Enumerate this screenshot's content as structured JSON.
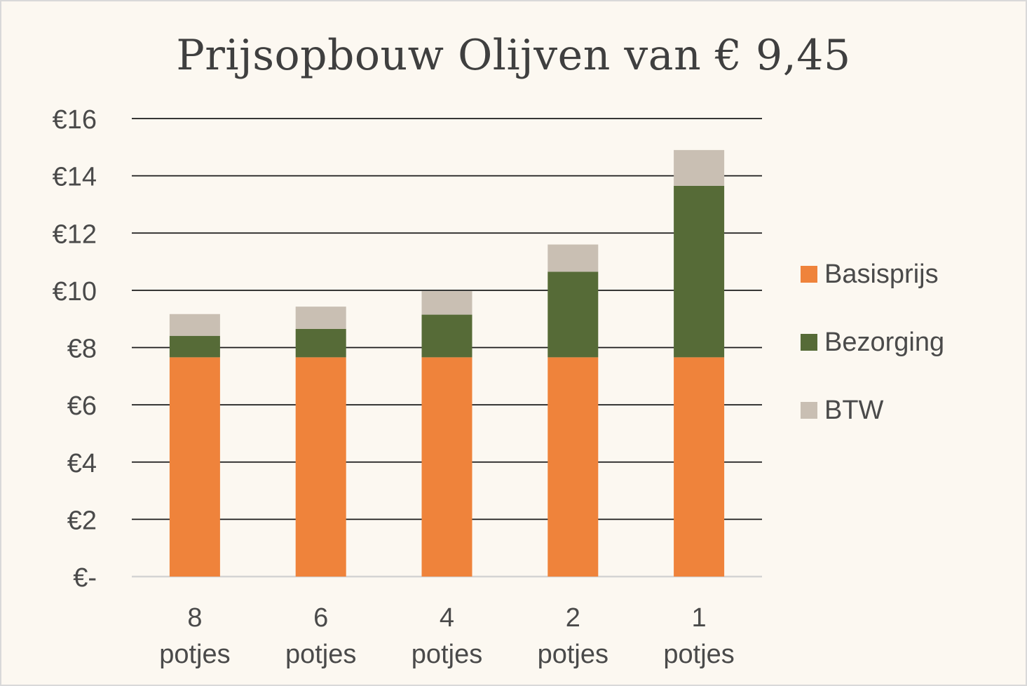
{
  "title": "Prijsopbouw Olijven van € 9,45",
  "legend": [
    {
      "name": "Basisprijs",
      "color": "#ef833b"
    },
    {
      "name": "Bezorging",
      "color": "#566b37"
    },
    {
      "name": "BTW",
      "color": "#c9bfb3"
    }
  ],
  "chart_data": {
    "type": "bar",
    "stacked": true,
    "title": "Prijsopbouw Olijven van € 9,45",
    "categories": [
      {
        "line1": "8",
        "line2": "potjes"
      },
      {
        "line1": "6",
        "line2": "potjes"
      },
      {
        "line1": "4",
        "line2": "potjes"
      },
      {
        "line1": "2",
        "line2": "potjes"
      },
      {
        "line1": "1",
        "line2": "potjes"
      }
    ],
    "series": [
      {
        "name": "Basisprijs",
        "color": "#ef833b",
        "values": [
          7.66,
          7.66,
          7.66,
          7.66,
          7.66
        ]
      },
      {
        "name": "Bezorging",
        "color": "#566b37",
        "values": [
          0.75,
          0.99,
          1.49,
          2.99,
          5.99
        ]
      },
      {
        "name": "BTW",
        "color": "#c9bfb3",
        "values": [
          0.76,
          0.78,
          0.82,
          0.95,
          1.25
        ]
      }
    ],
    "y_ticks": [
      {
        "value": 0,
        "label": "€-"
      },
      {
        "value": 2,
        "label": "€2"
      },
      {
        "value": 4,
        "label": "€4"
      },
      {
        "value": 6,
        "label": "€6"
      },
      {
        "value": 8,
        "label": "€8"
      },
      {
        "value": 10,
        "label": "€10"
      },
      {
        "value": 12,
        "label": "€12"
      },
      {
        "value": 14,
        "label": "€14"
      },
      {
        "value": 16,
        "label": "€16"
      }
    ],
    "ylim": [
      0,
      16
    ],
    "grid": true,
    "legend_position": "right"
  }
}
